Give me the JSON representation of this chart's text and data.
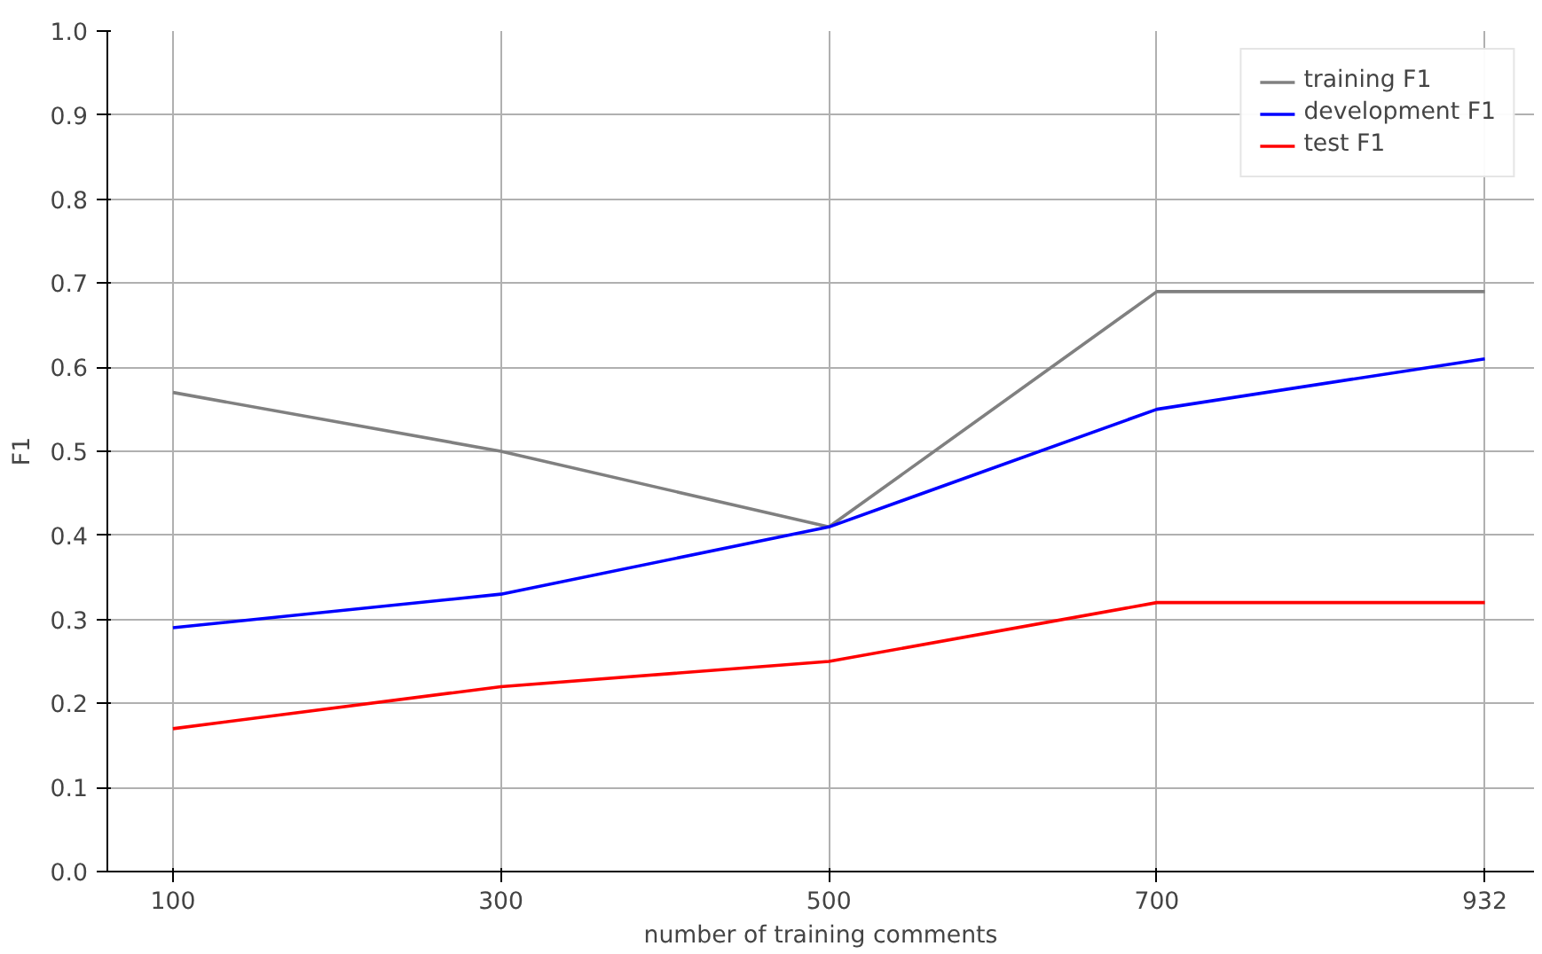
{
  "chart_data": {
    "type": "line",
    "xlabel": "number of training comments",
    "ylabel": "F1",
    "categories": [
      "100",
      "300",
      "500",
      "700",
      "932"
    ],
    "series": [
      {
        "name": "training F1",
        "color": "#808080",
        "values": [
          0.57,
          0.5,
          0.41,
          0.69,
          0.69
        ]
      },
      {
        "name": "development F1",
        "color": "#0000ff",
        "values": [
          0.29,
          0.33,
          0.41,
          0.55,
          0.61
        ]
      },
      {
        "name": "test F1",
        "color": "#ff0000",
        "values": [
          0.17,
          0.22,
          0.25,
          0.32,
          0.32
        ]
      }
    ],
    "ylim": [
      0,
      1
    ],
    "yticks": [
      {
        "value": 0,
        "label": "0.0"
      },
      0.1,
      0.2,
      0.3,
      0.4,
      0.5,
      0.6,
      0.7,
      0.8,
      0.9,
      {
        "value": 1,
        "label": "1.0"
      }
    ],
    "grid": true,
    "legend": "top right",
    "marker": "none",
    "line_style": "solid"
  }
}
